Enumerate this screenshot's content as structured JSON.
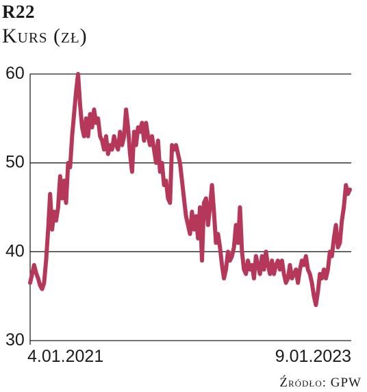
{
  "header": {
    "title": "R22",
    "subtitle": "Kurs (zł)"
  },
  "footer": {
    "source": "Źródło: GPW"
  },
  "chart_data": {
    "type": "line",
    "title": "R22",
    "ylabel": "Kurs (zł)",
    "ylim": [
      30,
      60
    ],
    "yticks": [
      30,
      40,
      50,
      60
    ],
    "grid": "horizontal",
    "x_start_label": "4.01.2021",
    "x_end_label": "9.01.2023",
    "line_color": "#b5385a",
    "series": [
      {
        "values": [
          36.5,
          37.5,
          38.5,
          37.6,
          37.0,
          36.2,
          35.8,
          36.5,
          39.0,
          42.5,
          46.5,
          42.5,
          44.5,
          43.5,
          45.0,
          48.5,
          46.0,
          48.0,
          45.5,
          50.0,
          49.5,
          53.0,
          55.5,
          58.0,
          60.0,
          56.5,
          54.0,
          53.0,
          55.0,
          53.0,
          55.5,
          54.0,
          56.0,
          54.5,
          55.0,
          53.0,
          52.5,
          51.5,
          53.0,
          51.0,
          52.0,
          51.5,
          53.0,
          52.0,
          51.5,
          53.5,
          52.0,
          53.0,
          56.0,
          54.0,
          51.0,
          49.0,
          53.5,
          52.0,
          54.0,
          53.5,
          54.5,
          52.5,
          54.5,
          53.0,
          52.0,
          53.0,
          51.5,
          50.0,
          52.5,
          49.0,
          50.0,
          47.5,
          48.0,
          46.0,
          45.5,
          52.0,
          51.5,
          52.0,
          51.0,
          50.0,
          48.0,
          46.0,
          44.0,
          43.0,
          42.0,
          44.5,
          42.5,
          44.0,
          41.5,
          45.0,
          39.0,
          45.5,
          46.0,
          43.0,
          45.0,
          47.5,
          44.5,
          41.0,
          42.0,
          40.5,
          38.5,
          37.0,
          38.0,
          40.0,
          39.0,
          39.5,
          40.5,
          43.0,
          41.0,
          45.0,
          40.0,
          38.0,
          37.5,
          39.0,
          38.0,
          38.5,
          37.0,
          39.5,
          38.5,
          37.5,
          39.5,
          38.0,
          40.0,
          38.5,
          37.5,
          39.0,
          37.5,
          38.5,
          39.0,
          38.0,
          39.0,
          37.5,
          36.5,
          37.0,
          38.5,
          37.0,
          37.5,
          38.0,
          36.5,
          38.0,
          39.0,
          38.5,
          39.5,
          38.0,
          37.5,
          36.5,
          35.0,
          34.0,
          35.5,
          37.5,
          37.0,
          38.0,
          37.0,
          38.0,
          40.0,
          39.5,
          41.5,
          43.0,
          40.5,
          41.0,
          43.5,
          45.0,
          47.5,
          46.5,
          47.0
        ]
      }
    ]
  }
}
